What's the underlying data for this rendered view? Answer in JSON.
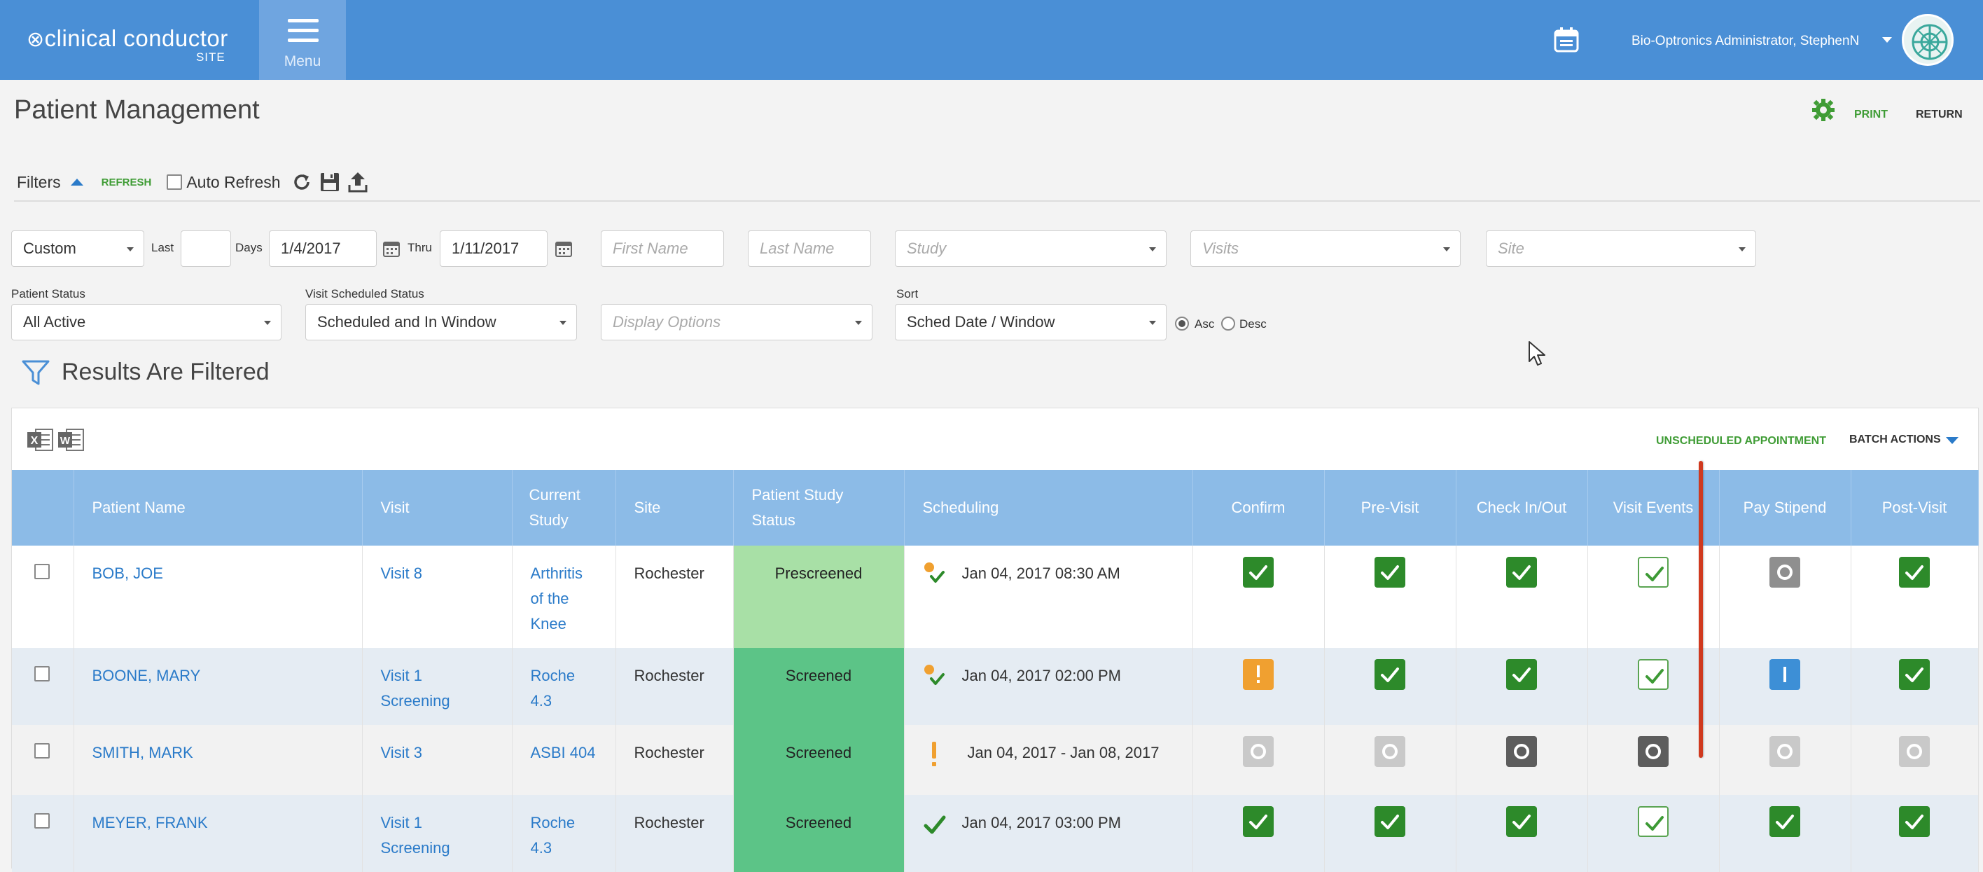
{
  "header": {
    "logo_text": "clinical conductor",
    "logo_sub": "SITE",
    "menu_label": "Menu",
    "user_name": "Bio-Optronics Administrator, StephenN"
  },
  "page": {
    "title": "Patient Management",
    "print_label": "PRINT",
    "return_label": "RETURN"
  },
  "filters": {
    "label": "Filters",
    "refresh_label": "REFRESH",
    "auto_refresh_label": "Auto Refresh",
    "range_select": "Custom",
    "last_label": "Last",
    "last_value": "",
    "days_label": "Days",
    "from_date": "1/4/2017",
    "thru_label": "Thru",
    "to_date": "1/11/2017",
    "first_name_placeholder": "First Name",
    "last_name_placeholder": "Last Name",
    "study_placeholder": "Study",
    "visits_placeholder": "Visits",
    "site_placeholder": "Site",
    "patient_status_label": "Patient Status",
    "patient_status_value": "All Active",
    "visit_sched_status_label": "Visit Scheduled Status",
    "visit_sched_status_value": "Scheduled and In Window",
    "display_options_placeholder": "Display Options",
    "sort_label": "Sort",
    "sort_value": "Sched Date / Window",
    "asc_label": "Asc",
    "desc_label": "Desc",
    "sort_direction": "asc"
  },
  "results": {
    "filtered_label": "Results Are Filtered",
    "unscheduled_label": "UNSCHEDULED APPOINTMENT",
    "batch_actions_label": "BATCH ACTIONS"
  },
  "table": {
    "headers": {
      "patient_name": "Patient Name",
      "visit": "Visit",
      "current_study_1": "Current",
      "current_study_2": "Study",
      "site": "Site",
      "pss_1": "Patient Study",
      "pss_2": "Status",
      "scheduling": "Scheduling",
      "confirm": "Confirm",
      "pre_visit": "Pre-Visit",
      "check_in_out": "Check In/Out",
      "visit_events": "Visit Events",
      "pay_stipend": "Pay Stipend",
      "post_visit": "Post-Visit"
    },
    "rows": [
      {
        "name": "BOB, JOE",
        "visit_1": "Visit 8",
        "visit_2": "",
        "study_1": "Arthritis",
        "study_2": "of the",
        "study_3": "Knee",
        "site": "Rochester",
        "status": "Prescreened",
        "schedule_icon": "dot-check-icon",
        "schedule": "Jan 04, 2017 08:30 AM",
        "confirm": "complete",
        "pre_visit": "complete",
        "check_in_out": "complete",
        "visit_events": "partial",
        "pay_stipend": "pending-grey",
        "post_visit": "complete"
      },
      {
        "name": "BOONE, MARY",
        "visit_1": "Visit 1",
        "visit_2": "Screening",
        "study_1": "Roche",
        "study_2": "4.3",
        "study_3": "",
        "site": "Rochester",
        "status": "Screened",
        "schedule_icon": "dot-check-icon",
        "schedule": "Jan 04, 2017 02:00 PM",
        "confirm": "warning",
        "pre_visit": "complete",
        "check_in_out": "complete",
        "visit_events": "partial",
        "pay_stipend": "info",
        "post_visit": "complete"
      },
      {
        "name": "SMITH, MARK",
        "visit_1": "Visit 3",
        "visit_2": "",
        "study_1": "ASBI 404",
        "study_2": "",
        "study_3": "",
        "site": "Rochester",
        "status": "Screened",
        "schedule_icon": "exclamation-icon",
        "schedule": "Jan 04, 2017 - Jan 08, 2017",
        "confirm": "disabled",
        "pre_visit": "disabled",
        "check_in_out": "pending-dark",
        "visit_events": "pending-dark",
        "pay_stipend": "disabled",
        "post_visit": "disabled"
      },
      {
        "name": "MEYER, FRANK",
        "visit_1": "Visit 1",
        "visit_2": "Screening",
        "study_1": "Roche",
        "study_2": "4.3",
        "study_3": "",
        "site": "Rochester",
        "status": "Screened",
        "schedule_icon": "check-icon",
        "schedule": "Jan 04, 2017 03:00 PM",
        "confirm": "complete",
        "pre_visit": "complete",
        "check_in_out": "complete",
        "visit_events": "partial",
        "pay_stipend": "complete",
        "post_visit": "complete"
      }
    ]
  },
  "colors": {
    "topbar": "#4a8fd6",
    "accent_green": "#3f9c35",
    "link_blue": "#2b7bc9",
    "header_row": "#8cbbe7"
  }
}
